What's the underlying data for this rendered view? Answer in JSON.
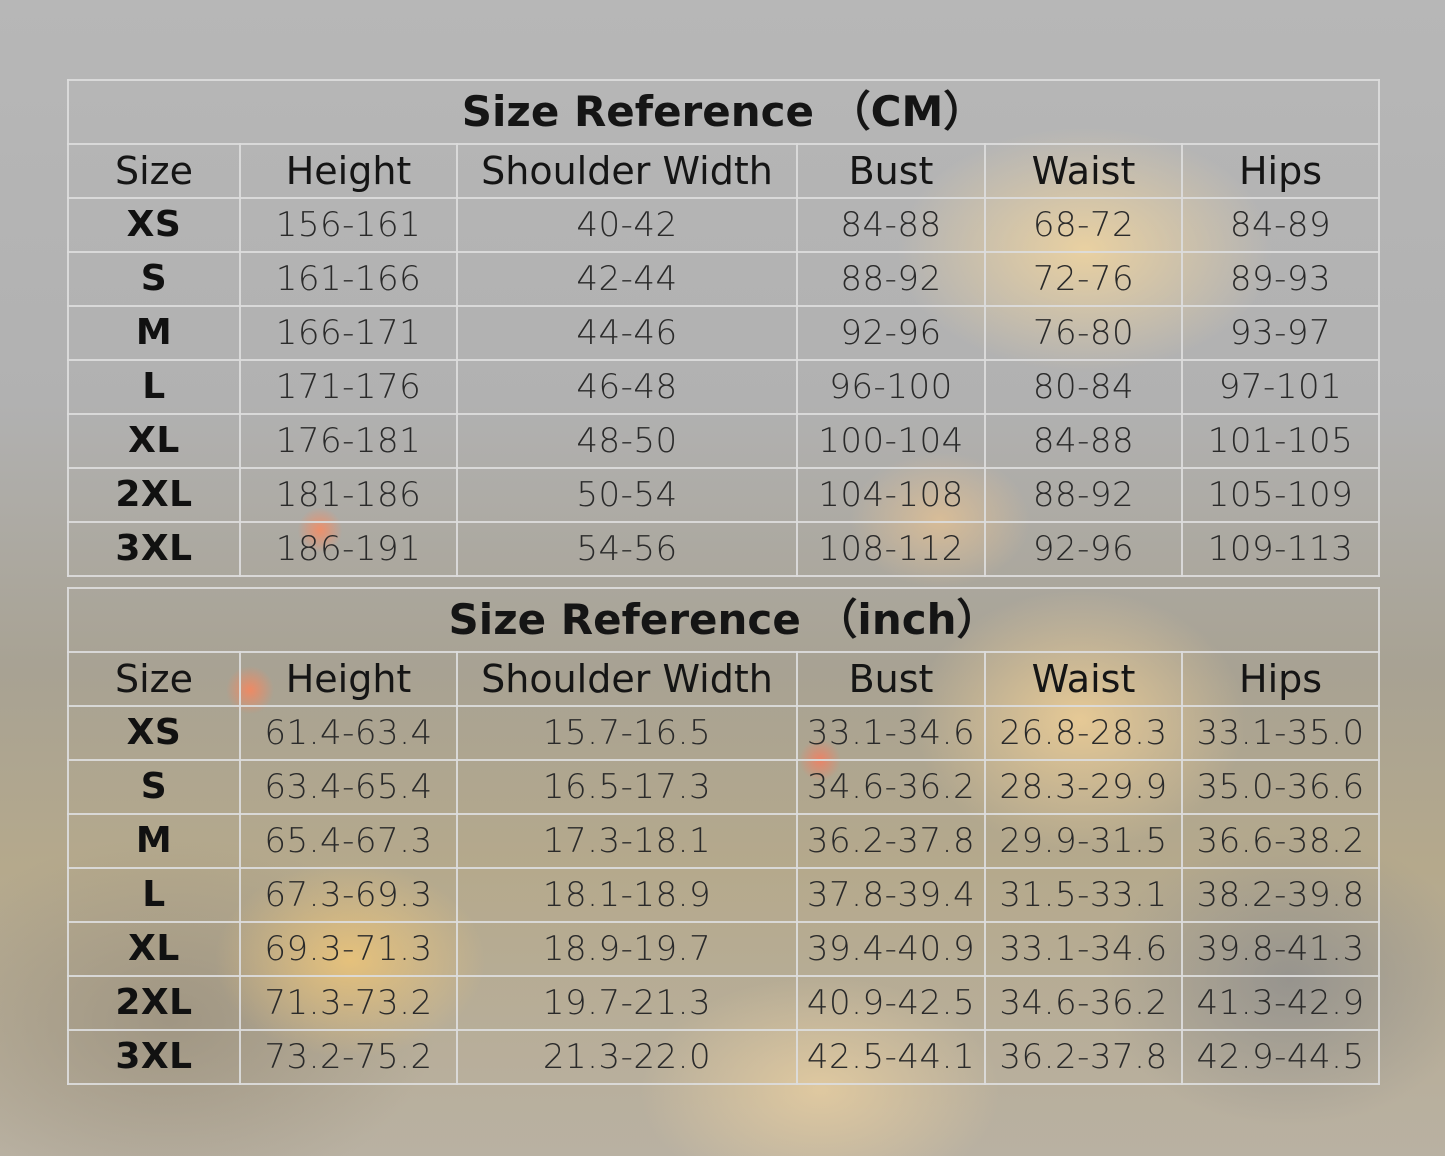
{
  "cm_table": {
    "title": "Size Reference （CM）",
    "headers": [
      "Size",
      "Height",
      "Shoulder Width",
      "Bust",
      "Waist",
      "Hips"
    ],
    "rows": [
      [
        "XS",
        "156-161",
        "40-42",
        "84-88",
        "68-72",
        "84-89"
      ],
      [
        "S",
        "161-166",
        "42-44",
        "88-92",
        "72-76",
        "89-93"
      ],
      [
        "M",
        "166-171",
        "44-46",
        "92-96",
        "76-80",
        "93-97"
      ],
      [
        "L",
        "171-176",
        "46-48",
        "96-100",
        "80-84",
        "97-101"
      ],
      [
        "XL",
        "176-181",
        "48-50",
        "100-104",
        "84-88",
        "101-105"
      ],
      [
        "2XL",
        "181-186",
        "50-54",
        "104-108",
        "88-92",
        "105-109"
      ],
      [
        "3XL",
        "186-191",
        "54-56",
        "108-112",
        "92-96",
        "109-113"
      ]
    ]
  },
  "inch_table": {
    "title": "Size Reference （inch）",
    "headers": [
      "Size",
      "Height",
      "Shoulder Width",
      "Bust",
      "Waist",
      "Hips"
    ],
    "rows": [
      [
        "XS",
        "61.4-63.4",
        "15.7-16.5",
        "33.1-34.6",
        "26.8-28.3",
        "33.1-35.0"
      ],
      [
        "S",
        "63.4-65.4",
        "16.5-17.3",
        "34.6-36.2",
        "28.3-29.9",
        "35.0-36.6"
      ],
      [
        "M",
        "65.4-67.3",
        "17.3-18.1",
        "36.2-37.8",
        "29.9-31.5",
        "36.6-38.2"
      ],
      [
        "L",
        "67.3-69.3",
        "18.1-18.9",
        "37.8-39.4",
        "31.5-33.1",
        "38.2-39.8"
      ],
      [
        "XL",
        "69.3-71.3",
        "18.9-19.7",
        "39.4-40.9",
        "33.1-34.6",
        "39.8-41.3"
      ],
      [
        "2XL",
        "71.3-73.2",
        "19.7-21.3",
        "40.9-42.5",
        "34.6-36.2",
        "41.3-42.9"
      ],
      [
        "3XL",
        "73.2-75.2",
        "21.3-22.0",
        "42.5-44.1",
        "36.2-37.8",
        "42.9-44.5"
      ]
    ]
  },
  "chart_data": [
    {
      "type": "table",
      "title": "Size Reference （CM）",
      "columns": [
        "Size",
        "Height",
        "Shoulder Width",
        "Bust",
        "Waist",
        "Hips"
      ],
      "rows": [
        [
          "XS",
          "156-161",
          "40-42",
          "84-88",
          "68-72",
          "84-89"
        ],
        [
          "S",
          "161-166",
          "42-44",
          "88-92",
          "72-76",
          "89-93"
        ],
        [
          "M",
          "166-171",
          "44-46",
          "92-96",
          "76-80",
          "93-97"
        ],
        [
          "L",
          "171-176",
          "46-48",
          "96-100",
          "80-84",
          "97-101"
        ],
        [
          "XL",
          "176-181",
          "48-50",
          "100-104",
          "84-88",
          "101-105"
        ],
        [
          "2XL",
          "181-186",
          "50-54",
          "104-108",
          "88-92",
          "105-109"
        ],
        [
          "3XL",
          "186-191",
          "54-56",
          "108-112",
          "92-96",
          "109-113"
        ]
      ]
    },
    {
      "type": "table",
      "title": "Size Reference （inch）",
      "columns": [
        "Size",
        "Height",
        "Shoulder Width",
        "Bust",
        "Waist",
        "Hips"
      ],
      "rows": [
        [
          "XS",
          "61.4-63.4",
          "15.7-16.5",
          "33.1-34.6",
          "26.8-28.3",
          "33.1-35.0"
        ],
        [
          "S",
          "63.4-65.4",
          "16.5-17.3",
          "34.6-36.2",
          "28.3-29.9",
          "35.0-36.6"
        ],
        [
          "M",
          "65.4-67.3",
          "17.3-18.1",
          "36.2-37.8",
          "29.9-31.5",
          "36.6-38.2"
        ],
        [
          "L",
          "67.3-69.3",
          "18.1-18.9",
          "37.8-39.4",
          "31.5-33.1",
          "38.2-39.8"
        ],
        [
          "XL",
          "69.3-71.3",
          "18.9-19.7",
          "39.4-40.9",
          "33.1-34.6",
          "39.8-41.3"
        ],
        [
          "2XL",
          "71.3-73.2",
          "19.7-21.3",
          "40.9-42.5",
          "34.6-36.2",
          "41.3-42.9"
        ],
        [
          "3XL",
          "73.2-75.2",
          "21.3-22.0",
          "42.5-44.1",
          "36.2-37.8",
          "42.9-44.5"
        ]
      ]
    }
  ]
}
